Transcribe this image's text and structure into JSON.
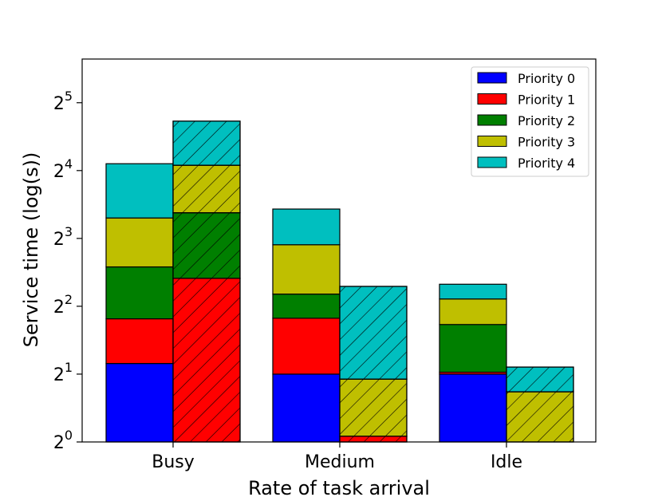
{
  "chart_data": {
    "type": "bar",
    "subtype": "stacked-grouped",
    "scale": "log2",
    "title": "",
    "xlabel": "Rate of task arrival",
    "ylabel": "Service time (log(s))",
    "categories": [
      "Busy",
      "Medium",
      "Idle"
    ],
    "ylim": [
      1,
      50
    ],
    "yticks": [
      {
        "value": 1,
        "base": "2",
        "exp": "0"
      },
      {
        "value": 2,
        "base": "2",
        "exp": "1"
      },
      {
        "value": 4,
        "base": "2",
        "exp": "2"
      },
      {
        "value": 8,
        "base": "2",
        "exp": "3"
      },
      {
        "value": 16,
        "base": "2",
        "exp": "4"
      },
      {
        "value": 32,
        "base": "2",
        "exp": "5"
      }
    ],
    "series": [
      {
        "name": "Priority 0",
        "color": "#0000ff"
      },
      {
        "name": "Priority 1",
        "color": "#ff0000"
      },
      {
        "name": "Priority 2",
        "color": "#007f00"
      },
      {
        "name": "Priority 3",
        "color": "#bfbf00"
      },
      {
        "name": "Priority 4",
        "color": "#00bfbf"
      }
    ],
    "groups": [
      {
        "name": "solid",
        "hatch": false,
        "stacks": [
          [
            1.23,
            1.29,
            2.46,
            3.88,
            7.3
          ],
          [
            1.0,
            1.54,
            0.99,
            2.97,
            3.3
          ],
          [
            1.0,
            0.04,
            1.28,
            0.99,
            0.7
          ]
        ]
      },
      {
        "name": "hatched",
        "hatch": true,
        "stacks": [
          [
            0.0,
            4.32,
            5.08,
            6.5,
            9.6
          ],
          [
            0.0,
            0.06,
            0.0,
            0.84,
            3.0
          ],
          [
            0.0,
            0.0,
            0.0,
            0.67,
            0.48
          ]
        ]
      }
    ],
    "legend": {
      "position": "top-right",
      "entries": [
        "Priority 0",
        "Priority 1",
        "Priority 2",
        "Priority 3",
        "Priority 4"
      ]
    }
  }
}
